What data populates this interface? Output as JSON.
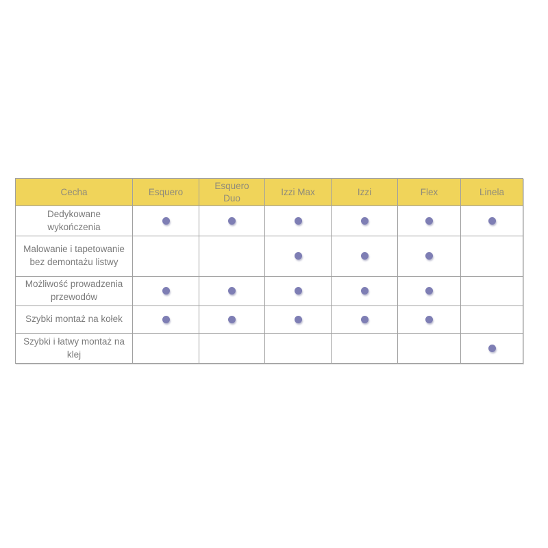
{
  "colors": {
    "header_bg": "#F0D45A",
    "header_text": "#8F8B7A",
    "body_text": "#7A7A7A",
    "border": "#A0A0A0",
    "dot": "#7E7EB4",
    "page_bg": "#FFFFFF"
  },
  "table": {
    "columns": [
      "Cecha",
      "Esquero",
      "Esquero Duo",
      "Izzi Max",
      "Izzi",
      "Flex",
      "Linela"
    ],
    "rows": [
      {
        "feature": "Dedykowane wykończenia",
        "values": [
          1,
          1,
          1,
          1,
          1,
          1
        ]
      },
      {
        "feature": "Malowanie i tapetowanie bez demontażu listwy",
        "values": [
          0,
          0,
          1,
          1,
          1,
          0
        ]
      },
      {
        "feature": "Możliwość prowadzenia przewodów",
        "values": [
          1,
          1,
          1,
          1,
          1,
          0
        ]
      },
      {
        "feature": "Szybki montaż na kołek",
        "values": [
          1,
          1,
          1,
          1,
          1,
          0
        ]
      },
      {
        "feature": "Szybki i łatwy montaż na klej",
        "values": [
          0,
          0,
          0,
          0,
          0,
          1
        ]
      }
    ]
  },
  "chart_data": {
    "type": "table",
    "title": "",
    "columns": [
      "Cecha",
      "Esquero",
      "Esquero Duo",
      "Izzi Max",
      "Izzi",
      "Flex",
      "Linela"
    ],
    "rows": [
      [
        "Dedykowane wykończenia",
        1,
        1,
        1,
        1,
        1,
        1
      ],
      [
        "Malowanie i tapetowanie bez demontażu listwy",
        0,
        0,
        1,
        1,
        1,
        0
      ],
      [
        "Możliwość prowadzenia przewodów",
        1,
        1,
        1,
        1,
        1,
        0
      ],
      [
        "Szybki montaż na kołek",
        1,
        1,
        1,
        1,
        1,
        0
      ],
      [
        "Szybki i łatwy montaż na klej",
        0,
        0,
        0,
        0,
        0,
        1
      ]
    ],
    "cell_marker": "filled purple dot = feature available, empty = not available",
    "layout": "header row with yellow background, first column lists features, remaining six columns are product models"
  }
}
